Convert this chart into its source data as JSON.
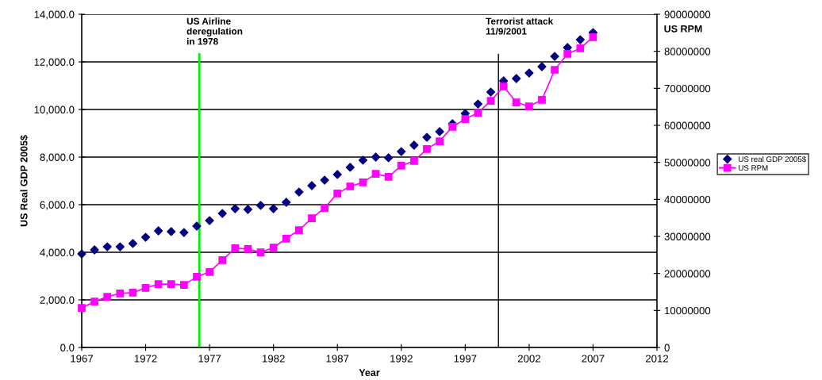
{
  "chart_data": {
    "type": "line",
    "xlabel": "Year",
    "ylabel": "US Real GDP 2005$",
    "y2label": "US RPM",
    "x": [
      1967,
      1968,
      1969,
      1970,
      1971,
      1972,
      1973,
      1974,
      1975,
      1976,
      1977,
      1978,
      1979,
      1980,
      1981,
      1982,
      1983,
      1984,
      1985,
      1986,
      1987,
      1988,
      1989,
      1990,
      1991,
      1992,
      1993,
      1994,
      1995,
      1996,
      1997,
      1998,
      1999,
      2000,
      2001,
      2002,
      2003,
      2004,
      2005,
      2006,
      2007
    ],
    "series": [
      {
        "name": "US real GDP 2005$",
        "type": "scatter",
        "marker": "diamond",
        "color": "#000080",
        "values": [
          3930,
          4100,
          4230,
          4230,
          4370,
          4630,
          4900,
          4870,
          4830,
          5100,
          5330,
          5630,
          5830,
          5800,
          5970,
          5830,
          6100,
          6530,
          6800,
          7030,
          7270,
          7570,
          7870,
          8000,
          7970,
          8230,
          8500,
          8830,
          9070,
          9400,
          9830,
          10230,
          10730,
          11200,
          11300,
          11530,
          11800,
          12230,
          12600,
          12930,
          13230
        ]
      },
      {
        "name": "US RPM",
        "marker": "square",
        "axis": "y2",
        "color": "#ff00ff",
        "values": [
          10700000,
          12400000,
          13700000,
          14600000,
          14800000,
          16100000,
          17100000,
          17100000,
          16900000,
          19100000,
          20400000,
          23600000,
          26800000,
          26600000,
          25700000,
          27000000,
          29400000,
          31700000,
          34900000,
          37700000,
          41600000,
          43500000,
          44600000,
          46900000,
          46100000,
          49100000,
          50400000,
          53600000,
          55700000,
          59600000,
          61700000,
          63400000,
          66600000,
          70500000,
          66200000,
          65100000,
          66900000,
          75000000,
          79300000,
          80800000,
          83800000
        ]
      }
    ],
    "xlim": [
      1967,
      2012
    ],
    "xticks": [
      1967,
      1972,
      1977,
      1982,
      1987,
      1992,
      1997,
      2002,
      2007,
      2012
    ],
    "ylim": [
      0,
      14000
    ],
    "yticks": [
      {
        "value": 0,
        "label": "0.0"
      },
      {
        "value": 2000,
        "label": "2,000.0"
      },
      {
        "value": 4000,
        "label": "4,000.0"
      },
      {
        "value": 6000,
        "label": "6,000.0"
      },
      {
        "value": 8000,
        "label": "8,000.0"
      },
      {
        "value": 10000,
        "label": "10,000.0"
      },
      {
        "value": 12000,
        "label": "12,000.0"
      },
      {
        "value": 14000,
        "label": "14,000.0"
      }
    ],
    "y2lim": [
      0,
      90000000
    ],
    "y2ticks": [
      0,
      10000000,
      20000000,
      30000000,
      40000000,
      50000000,
      60000000,
      70000000,
      80000000,
      90000000
    ],
    "ref_lines": [
      {
        "axis": "x",
        "value": 1976.2,
        "label": "US Airline\nderegulation\nin 1978",
        "color": "#00ee00"
      },
      {
        "axis": "x",
        "value": 1999.6,
        "label": "Terrorist attack\n11/9/2001",
        "color": "#000000"
      }
    ],
    "grid": "y",
    "legend": "right"
  }
}
